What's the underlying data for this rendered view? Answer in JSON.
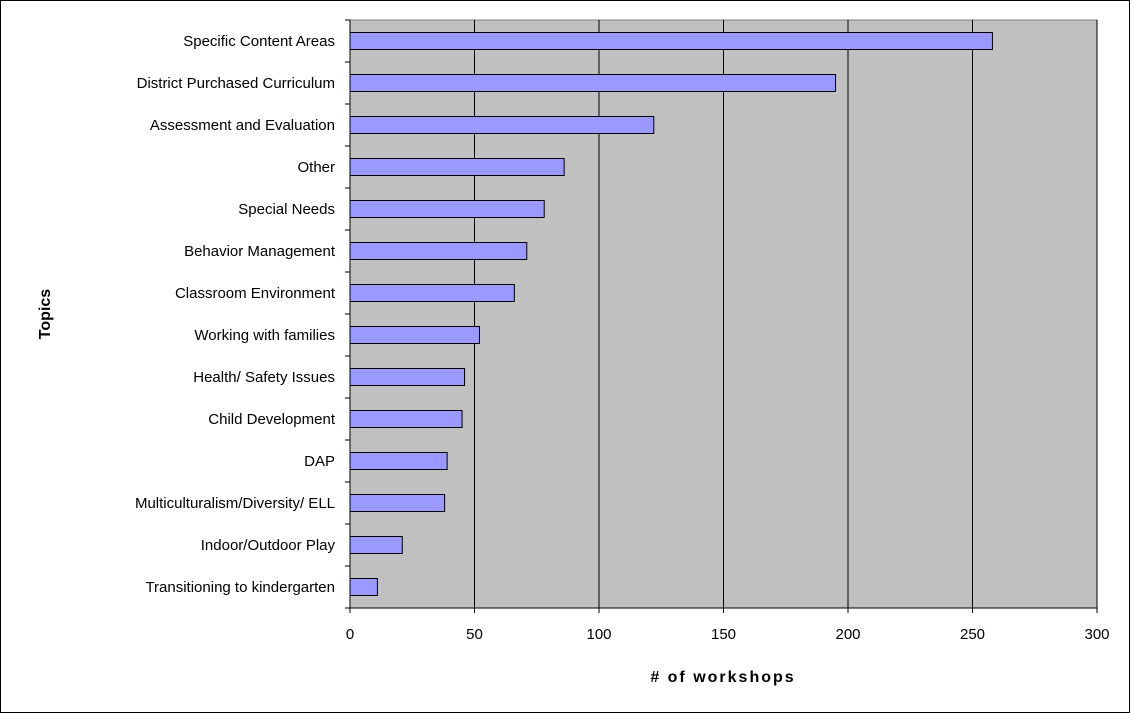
{
  "chart_data": {
    "type": "bar",
    "orientation": "horizontal",
    "categories": [
      "Specific Content Areas",
      "District Purchased Curriculum",
      "Assessment and Evaluation",
      "Other",
      "Special Needs",
      "Behavior Management",
      "Classroom Environment",
      "Working with families",
      "Health/ Safety Issues",
      "Child Development",
      "DAP",
      "Multiculturalism/Diversity/ ELL",
      "Indoor/Outdoor Play",
      "Transitioning to kindergarten"
    ],
    "values": [
      258,
      195,
      122,
      86,
      78,
      71,
      66,
      52,
      46,
      45,
      39,
      38,
      21,
      11
    ],
    "xlabel": "# of workshops",
    "ylabel": "Topics",
    "xlim": [
      0,
      300
    ],
    "xticks": [
      "0",
      "50",
      "100",
      "150",
      "200",
      "250",
      "300"
    ],
    "grid": true,
    "legend": "none",
    "colors": {
      "bar_fill": "#9999ff",
      "bar_stroke": "#000000",
      "plot_background": "#c0c0c0",
      "gridline": "#000000"
    }
  }
}
